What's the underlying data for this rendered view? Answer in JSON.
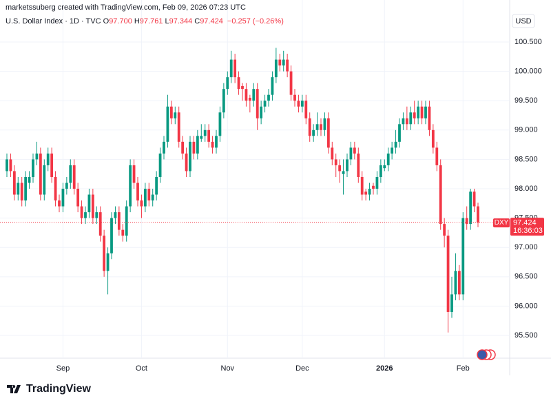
{
  "chart_data": {
    "type": "candlestick",
    "title": "marketssuberg created with TradingView.com, Feb 09, 2026 07:23 UTC",
    "subtitle": "U.S. Dollar Index · 1D · TVC",
    "ohlc_labels": [
      {
        "label": "O",
        "value": "97.700"
      },
      {
        "label": "H",
        "value": "97.761"
      },
      {
        "label": "L",
        "value": "97.344"
      },
      {
        "label": "C",
        "value": "97.424"
      }
    ],
    "change": "−0.257 (−0.26%)",
    "currency": "USD",
    "symbol": "DXY",
    "countdown": "16:36:03",
    "categories": [
      null,
      null,
      null,
      null,
      null,
      null,
      null,
      null,
      null,
      null,
      null,
      null,
      null,
      null,
      null,
      "Sep",
      null,
      null,
      null,
      null,
      null,
      null,
      null,
      null,
      null,
      null,
      null,
      null,
      null,
      null,
      null,
      null,
      null,
      null,
      null,
      null,
      "Oct",
      null,
      null,
      null,
      null,
      null,
      null,
      null,
      null,
      null,
      null,
      null,
      null,
      null,
      null,
      null,
      null,
      null,
      null,
      null,
      null,
      null,
      null,
      "Nov",
      null,
      null,
      null,
      null,
      null,
      null,
      null,
      null,
      null,
      null,
      null,
      null,
      null,
      null,
      null,
      null,
      null,
      null,
      null,
      "Dec",
      null,
      null,
      null,
      null,
      null,
      null,
      null,
      null,
      null,
      null,
      null,
      null,
      null,
      null,
      null,
      null,
      null,
      null,
      null,
      null,
      null,
      "2026",
      null,
      null,
      null,
      null,
      null,
      null,
      null,
      null,
      null,
      null,
      null,
      null,
      null,
      null,
      null,
      null,
      null,
      null,
      null,
      null,
      "Feb",
      null,
      null,
      null,
      null
    ],
    "open": [
      98.3,
      98.5,
      98.3,
      97.9,
      98.1,
      97.8,
      98.1,
      98.2,
      98.5,
      98.6,
      97.9,
      98.4,
      98.6,
      98.2,
      97.8,
      97.7,
      98.0,
      98.1,
      98.4,
      98.0,
      97.7,
      97.5,
      97.6,
      97.9,
      97.5,
      97.6,
      97.2,
      96.6,
      96.9,
      97.5,
      97.6,
      97.3,
      97.2,
      97.7,
      98.4,
      98.1,
      97.8,
      97.7,
      98.0,
      97.8,
      97.9,
      98.2,
      98.6,
      98.8,
      99.4,
      99.2,
      99.3,
      98.8,
      98.6,
      98.3,
      98.8,
      98.6,
      98.85,
      98.9,
      99.0,
      98.8,
      98.7,
      98.9,
      99.3,
      99.7,
      99.9,
      100.2,
      99.9,
      99.75,
      99.7,
      99.55,
      99.5,
      99.7,
      99.2,
      99.4,
      99.5,
      99.6,
      99.9,
      100.2,
      100.1,
      100.2,
      100.0,
      99.6,
      99.5,
      99.4,
      99.5,
      99.2,
      98.9,
      99.0,
      99.1,
      99.0,
      99.2,
      98.7,
      98.5,
      98.4,
      98.25,
      98.3,
      98.5,
      98.7,
      98.6,
      98.2,
      97.95,
      97.9,
      98.05,
      98.0,
      98.2,
      98.35,
      98.4,
      98.6,
      98.7,
      98.8,
      99.1,
      99.2,
      99.1,
      99.3,
      99.2,
      99.4,
      99.2,
      99.4,
      99.0,
      98.7,
      98.4,
      97.4,
      97.2,
      95.9,
      96.2,
      96.6,
      96.2,
      97.5,
      97.4,
      97.95,
      97.7
    ],
    "high": [
      98.6,
      98.6,
      98.4,
      98.2,
      98.2,
      98.3,
      98.3,
      98.6,
      98.8,
      98.7,
      98.5,
      98.7,
      98.7,
      98.3,
      97.9,
      98.1,
      98.2,
      98.5,
      98.5,
      98.1,
      97.8,
      97.7,
      98.0,
      98.0,
      97.7,
      97.7,
      97.3,
      97.0,
      97.6,
      97.7,
      97.7,
      97.4,
      97.8,
      98.5,
      98.5,
      98.2,
      97.9,
      98.1,
      98.1,
      98.0,
      98.3,
      98.7,
      98.9,
      99.6,
      99.5,
      99.4,
      99.4,
      98.9,
      98.7,
      98.9,
      98.9,
      99.0,
      99.1,
      99.1,
      99.1,
      98.9,
      99.0,
      99.4,
      99.8,
      100.0,
      100.35,
      100.3,
      100.0,
      99.8,
      99.8,
      99.6,
      99.8,
      99.8,
      99.5,
      99.6,
      99.7,
      100.0,
      100.4,
      100.3,
      100.35,
      100.3,
      100.1,
      99.7,
      99.6,
      99.6,
      99.6,
      99.3,
      99.1,
      99.3,
      99.2,
      99.3,
      99.3,
      98.8,
      98.6,
      98.5,
      98.5,
      98.6,
      98.8,
      98.8,
      98.7,
      98.3,
      98.0,
      98.1,
      98.1,
      98.3,
      98.5,
      98.5,
      98.7,
      98.8,
      99.0,
      99.2,
      99.3,
      99.4,
      99.4,
      99.5,
      99.5,
      99.5,
      99.5,
      99.5,
      99.1,
      98.8,
      98.5,
      97.5,
      97.3,
      96.5,
      96.9,
      96.7,
      97.6,
      97.7,
      98.0,
      98.0,
      97.761
    ],
    "low": [
      98.2,
      98.2,
      97.8,
      97.8,
      97.7,
      97.7,
      98.0,
      98.1,
      98.4,
      97.8,
      97.8,
      98.3,
      98.1,
      97.7,
      97.6,
      97.6,
      97.9,
      98.0,
      97.9,
      97.6,
      97.4,
      97.4,
      97.5,
      97.4,
      97.4,
      97.1,
      96.5,
      96.2,
      96.8,
      97.4,
      97.2,
      97.1,
      97.1,
      97.6,
      98.0,
      97.7,
      97.5,
      97.6,
      97.7,
      97.7,
      97.8,
      98.1,
      98.5,
      98.7,
      99.1,
      99.1,
      98.7,
      98.5,
      98.2,
      98.2,
      98.5,
      98.5,
      98.8,
      98.8,
      98.7,
      98.6,
      98.6,
      98.8,
      99.2,
      99.6,
      99.8,
      99.8,
      99.6,
      99.5,
      99.4,
      99.3,
      99.4,
      99.0,
      99.1,
      99.3,
      99.4,
      99.5,
      99.8,
      100.0,
      100.0,
      99.9,
      99.5,
      99.4,
      99.3,
      99.3,
      99.1,
      98.8,
      98.8,
      98.9,
      98.9,
      98.9,
      98.6,
      98.4,
      98.2,
      98.1,
      97.9,
      98.2,
      98.4,
      98.5,
      98.1,
      97.8,
      97.8,
      97.8,
      97.9,
      97.9,
      98.1,
      98.3,
      98.3,
      98.5,
      98.6,
      98.7,
      99.0,
      99.0,
      99.0,
      99.1,
      99.1,
      99.1,
      99.1,
      98.9,
      98.6,
      98.3,
      97.3,
      97.0,
      95.55,
      95.8,
      96.1,
      96.1,
      96.1,
      97.3,
      97.3,
      97.6,
      97.344
    ],
    "close": [
      98.5,
      98.3,
      97.9,
      98.1,
      97.8,
      98.2,
      98.2,
      98.5,
      98.6,
      97.9,
      98.4,
      98.6,
      98.2,
      97.8,
      97.7,
      98.0,
      98.1,
      98.4,
      98.0,
      97.7,
      97.5,
      97.6,
      97.9,
      97.5,
      97.6,
      97.2,
      96.6,
      96.9,
      97.5,
      97.6,
      97.3,
      97.2,
      97.7,
      98.4,
      98.1,
      97.8,
      97.7,
      98.0,
      97.8,
      97.9,
      98.2,
      98.6,
      98.8,
      99.4,
      99.2,
      99.3,
      98.8,
      98.6,
      98.3,
      98.8,
      98.6,
      98.9,
      98.9,
      99.0,
      98.8,
      98.7,
      98.9,
      99.3,
      99.7,
      99.9,
      100.2,
      99.9,
      99.7,
      99.7,
      99.5,
      99.5,
      99.7,
      99.2,
      99.4,
      99.5,
      99.6,
      99.9,
      100.2,
      100.1,
      100.2,
      100.0,
      99.6,
      99.5,
      99.4,
      99.5,
      99.2,
      98.9,
      99.0,
      99.1,
      99.0,
      99.2,
      98.7,
      98.5,
      98.4,
      98.3,
      98.3,
      98.5,
      98.7,
      98.6,
      98.2,
      97.9,
      97.9,
      98.0,
      98.0,
      98.2,
      98.4,
      98.4,
      98.6,
      98.7,
      98.8,
      99.1,
      99.2,
      99.1,
      99.3,
      99.2,
      99.4,
      99.2,
      99.4,
      99.0,
      98.7,
      98.4,
      97.4,
      97.2,
      95.9,
      96.2,
      96.6,
      96.2,
      97.5,
      97.4,
      97.95,
      97.7,
      97.424
    ],
    "up_color": "#089981",
    "down_color": "#f23645",
    "ylim": [
      95.113,
      101.122
    ],
    "yticks": [
      {
        "value": 95.5,
        "label": "95.500"
      },
      {
        "value": 96,
        "label": "96.000"
      },
      {
        "value": 96.5,
        "label": "96.500"
      },
      {
        "value": 97,
        "label": "97.000"
      },
      {
        "value": 97.5,
        "label": "97.500"
      },
      {
        "value": 98,
        "label": "98.000"
      },
      {
        "value": 98.5,
        "label": "98.500"
      },
      {
        "value": 99,
        "label": "99.000"
      },
      {
        "value": 99.5,
        "label": "99.500"
      },
      {
        "value": 100,
        "label": "100.000"
      },
      {
        "value": 100.5,
        "label": "100.500"
      }
    ],
    "grid": true
  },
  "footer": {
    "brand": "TradingView"
  }
}
